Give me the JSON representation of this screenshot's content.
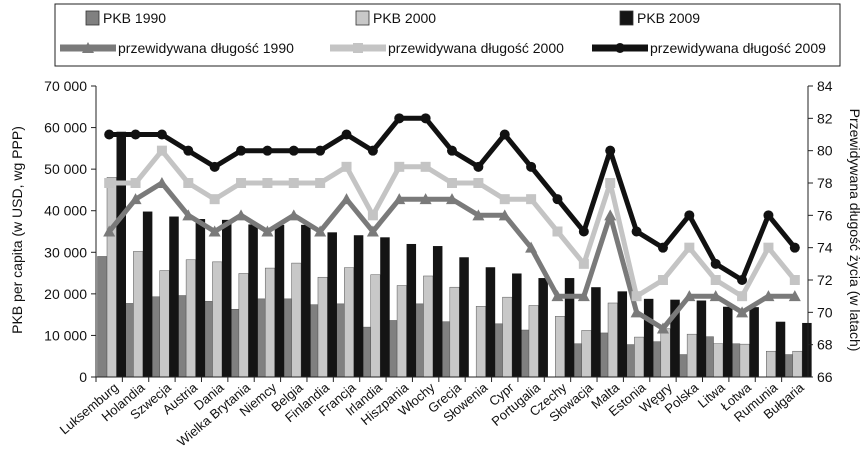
{
  "chart_data": {
    "type": "bar",
    "title": "",
    "ylabel": "PKB per capita (w USD, wg PPP)",
    "y2label": "Przewidywana długość życia (w latach)",
    "ylim": [
      0,
      70000
    ],
    "y2lim": [
      66,
      84
    ],
    "yticks": [
      "0",
      "10 000",
      "20 000",
      "30 000",
      "40 000",
      "50 000",
      "60 000",
      "70 000"
    ],
    "y2ticks": [
      "66",
      "68",
      "70",
      "72",
      "74",
      "76",
      "78",
      "80",
      "82",
      "84"
    ],
    "legend_placement": "top",
    "categories": [
      "Luksemburg",
      "Holandia",
      "Szwecja",
      "Austria",
      "Dania",
      "Wielka Brytania",
      "Niemcy",
      "Belgia",
      "Finlandia",
      "Francja",
      "Irlandia",
      "Hiszpania",
      "Włochy",
      "Grecja",
      "Słowenia",
      "Cypr",
      "Portugalia",
      "Czechy",
      "Słowacja",
      "Malta",
      "Estonia",
      "Węgry",
      "Polska",
      "Litwa",
      "Łotwa",
      "Rumunia",
      "Bułgaria"
    ],
    "bar_series": [
      {
        "name": "PKB 1990",
        "color": "#808080",
        "values": [
          29000,
          17700,
          19300,
          19600,
          18200,
          16300,
          18800,
          18800,
          17400,
          17600,
          12000,
          13600,
          17600,
          13300,
          null,
          12800,
          11300,
          null,
          8000,
          10600,
          7800,
          8500,
          5400,
          9700,
          8000,
          null,
          5400
        ]
      },
      {
        "name": "PKB 2000",
        "color": "#c8c8c8",
        "values": [
          48000,
          30200,
          25600,
          28200,
          27700,
          24900,
          26200,
          27400,
          24000,
          26300,
          24600,
          22000,
          24300,
          21600,
          17000,
          19200,
          17200,
          14600,
          11200,
          17800,
          9600,
          11600,
          10300,
          8000,
          7900,
          6200,
          6200
        ]
      },
      {
        "name": "PKB 2009",
        "color": "#141414",
        "values": [
          59000,
          39800,
          38600,
          38000,
          37800,
          36700,
          36600,
          36600,
          34800,
          34100,
          33600,
          32000,
          31500,
          28800,
          26400,
          24900,
          23800,
          23800,
          21600,
          20600,
          18800,
          18600,
          18400,
          16900,
          16800,
          13300,
          13000
        ]
      }
    ],
    "line_series": [
      {
        "name": "przewidywana długość 1990",
        "color": "#7a7a7a",
        "marker": "triangle",
        "values": [
          75,
          77,
          78,
          76,
          75,
          76,
          75,
          76,
          75,
          77,
          75,
          77,
          77,
          77,
          76,
          76,
          74,
          71,
          71,
          76,
          70,
          69,
          71,
          71,
          70,
          71,
          71
        ]
      },
      {
        "name": "przewidywana długość 2000",
        "color": "#c4c4c4",
        "marker": "square",
        "values": [
          78,
          78,
          80,
          78,
          77,
          78,
          78,
          78,
          78,
          79,
          76,
          79,
          79,
          78,
          78,
          77,
          77,
          75,
          73,
          78,
          71,
          72,
          74,
          72,
          71,
          74,
          72
        ]
      },
      {
        "name": "przewidywana długość 2009",
        "color": "#111111",
        "marker": "circle",
        "values": [
          81,
          81,
          81,
          80,
          79,
          80,
          80,
          80,
          80,
          81,
          80,
          82,
          82,
          80,
          79,
          81,
          79,
          77,
          75,
          80,
          75,
          74,
          76,
          73,
          72,
          76,
          74
        ]
      }
    ]
  }
}
